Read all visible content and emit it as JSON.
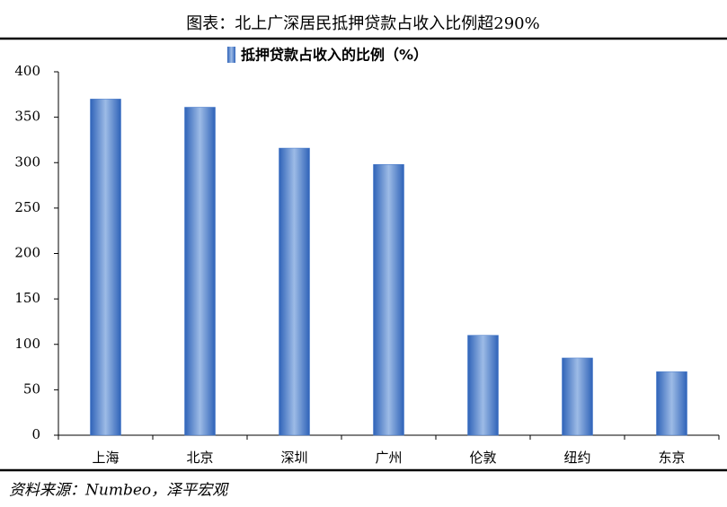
{
  "chart_data": {
    "type": "bar",
    "title": "图表：北上广深居民抵押贷款占收入比例超290%",
    "source": "资料来源：Numbeo，泽平宏观",
    "categories": [
      "上海",
      "北京",
      "深圳",
      "广州",
      "伦敦",
      "纽约",
      "东京"
    ],
    "series": [
      {
        "name": "抵押贷款占收入的比例（%）",
        "color": "#3f74c8",
        "values": [
          370,
          361,
          316,
          298,
          110,
          85,
          70
        ]
      }
    ],
    "ylim": [
      0,
      400
    ],
    "yticks": [
      0,
      50,
      100,
      150,
      200,
      250,
      300,
      350,
      400
    ],
    "grid": false,
    "legend": "top"
  }
}
